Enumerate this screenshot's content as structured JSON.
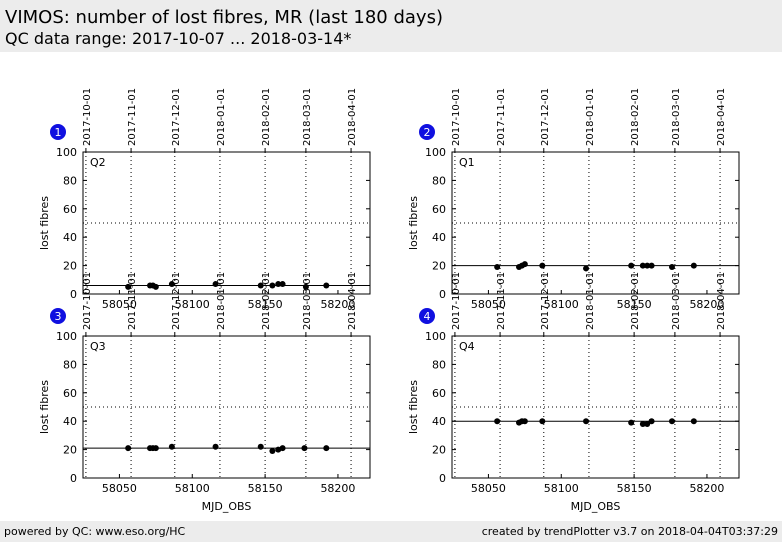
{
  "header": {
    "title": "VIMOS: number of lost fibres, MR (last 180 days)",
    "subtitle": "QC data range: 2017-10-07 ... 2018-03-14*"
  },
  "footer": {
    "left": "powered by QC: www.eso.org/HC",
    "right": "created by trendPlotter v3.7 on 2018-04-04T03:37:29"
  },
  "colors": {
    "badge": "#1010e0",
    "points": "#000000",
    "header_bg": "#ececec"
  },
  "chart_data": [
    {
      "type": "scatter",
      "badge": "1",
      "panel_label": "Q2",
      "xlabel": "",
      "ylabel": "lost fibres",
      "xlim": [
        58025,
        58222
      ],
      "ylim": [
        0,
        100
      ],
      "xticks": [
        58050,
        58100,
        58150,
        58200
      ],
      "yticks": [
        0,
        20,
        40,
        60,
        80,
        100
      ],
      "top_axis_dates": [
        {
          "label": "2017-10-01",
          "mjd": 58027
        },
        {
          "label": "2017-11-01",
          "mjd": 58058
        },
        {
          "label": "2017-12-01",
          "mjd": 58088
        },
        {
          "label": "2018-01-01",
          "mjd": 58119
        },
        {
          "label": "2018-02-01",
          "mjd": 58150
        },
        {
          "label": "2018-03-01",
          "mjd": 58178
        },
        {
          "label": "2018-04-01",
          "mjd": 58209
        }
      ],
      "reference_line": 6,
      "threshold_line": 50,
      "x": [
        58056,
        58071,
        58073,
        58075,
        58086,
        58116,
        58147,
        58155,
        58159,
        58162,
        58178,
        58192
      ],
      "y": [
        5,
        6,
        6,
        5,
        7,
        7,
        6,
        6,
        7,
        7,
        5,
        6
      ]
    },
    {
      "type": "scatter",
      "badge": "2",
      "panel_label": "Q1",
      "xlabel": "",
      "ylabel": "lost fibres",
      "xlim": [
        58025,
        58222
      ],
      "ylim": [
        0,
        100
      ],
      "xticks": [
        58050,
        58100,
        58150,
        58200
      ],
      "yticks": [
        0,
        20,
        40,
        60,
        80,
        100
      ],
      "top_axis_dates": [
        {
          "label": "2017-10-01",
          "mjd": 58027
        },
        {
          "label": "2017-11-01",
          "mjd": 58058
        },
        {
          "label": "2017-12-01",
          "mjd": 58088
        },
        {
          "label": "2018-01-01",
          "mjd": 58119
        },
        {
          "label": "2018-02-01",
          "mjd": 58150
        },
        {
          "label": "2018-03-01",
          "mjd": 58178
        },
        {
          "label": "2018-04-01",
          "mjd": 58209
        }
      ],
      "reference_line": 20,
      "threshold_line": 50,
      "x": [
        58056,
        58071,
        58073,
        58075,
        58087,
        58117,
        58148,
        58156,
        58159,
        58162,
        58176,
        58191
      ],
      "y": [
        19,
        19,
        20,
        21,
        20,
        18,
        20,
        20,
        20,
        20,
        19,
        20
      ]
    },
    {
      "type": "scatter",
      "badge": "3",
      "panel_label": "Q3",
      "xlabel": "MJD_OBS",
      "ylabel": "lost fibres",
      "xlim": [
        58025,
        58222
      ],
      "ylim": [
        0,
        100
      ],
      "xticks": [
        58050,
        58100,
        58150,
        58200
      ],
      "yticks": [
        0,
        20,
        40,
        60,
        80,
        100
      ],
      "top_axis_dates": [
        {
          "label": "2017-10-01",
          "mjd": 58027
        },
        {
          "label": "2017-11-01",
          "mjd": 58058
        },
        {
          "label": "2017-12-01",
          "mjd": 58088
        },
        {
          "label": "2018-01-01",
          "mjd": 58119
        },
        {
          "label": "2018-02-01",
          "mjd": 58150
        },
        {
          "label": "2018-03-01",
          "mjd": 58178
        },
        {
          "label": "2018-04-01",
          "mjd": 58209
        }
      ],
      "reference_line": 21,
      "threshold_line": 50,
      "x": [
        58056,
        58071,
        58073,
        58075,
        58086,
        58116,
        58147,
        58155,
        58159,
        58162,
        58177,
        58192
      ],
      "y": [
        21,
        21,
        21,
        21,
        22,
        22,
        22,
        19,
        20,
        21,
        21,
        21
      ]
    },
    {
      "type": "scatter",
      "badge": "4",
      "panel_label": "Q4",
      "xlabel": "MJD_OBS",
      "ylabel": "lost fibres",
      "xlim": [
        58025,
        58222
      ],
      "ylim": [
        0,
        100
      ],
      "xticks": [
        58050,
        58100,
        58150,
        58200
      ],
      "yticks": [
        0,
        20,
        40,
        60,
        80,
        100
      ],
      "top_axis_dates": [
        {
          "label": "2017-10-01",
          "mjd": 58027
        },
        {
          "label": "2017-11-01",
          "mjd": 58058
        },
        {
          "label": "2017-12-01",
          "mjd": 58088
        },
        {
          "label": "2018-01-01",
          "mjd": 58119
        },
        {
          "label": "2018-02-01",
          "mjd": 58150
        },
        {
          "label": "2018-03-01",
          "mjd": 58178
        },
        {
          "label": "2018-04-01",
          "mjd": 58209
        }
      ],
      "reference_line": 40,
      "threshold_line": 50,
      "x": [
        58056,
        58071,
        58073,
        58075,
        58087,
        58117,
        58148,
        58156,
        58159,
        58162,
        58176,
        58191
      ],
      "y": [
        40,
        39,
        40,
        40,
        40,
        40,
        39,
        38,
        38,
        40,
        40,
        40
      ]
    }
  ]
}
